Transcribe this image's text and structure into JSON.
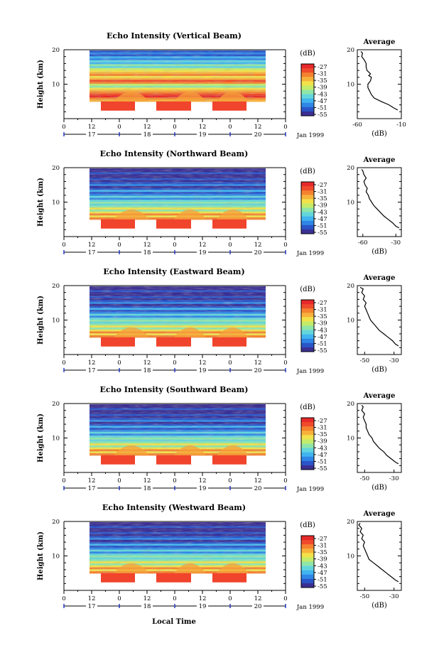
{
  "chart_data": {
    "type": "heatmap",
    "date_axis_label": "Jan 1999",
    "xlabel": "Local Time",
    "x_ticks_top": [
      "0",
      "12",
      "0",
      "12",
      "0",
      "12",
      "0",
      "12",
      "0"
    ],
    "x_ticks_days": [
      "17",
      "18",
      "19",
      "20"
    ],
    "colorbar": {
      "unit": "(dB)",
      "ticks": [
        "-27",
        "-31",
        "-35",
        "-39",
        "-43",
        "-47",
        "-51",
        "-55"
      ],
      "colors": [
        "#3b2f93",
        "#2a55c8",
        "#2f86e6",
        "#41b4f0",
        "#63d6dc",
        "#8fe6a8",
        "#c4ec6a",
        "#f2e24a",
        "#f7b23b",
        "#f5822f",
        "#f04a2c",
        "#e6292a"
      ]
    },
    "panels": [
      {
        "title": "Echo Intensity (Vertical Beam)",
        "ylabel": "Height (km)",
        "y_ticks": [
          "20",
          "10"
        ],
        "avg_title": "Average",
        "avg_xlabel": "(dB)",
        "avg_x_ticks": [
          "-60",
          "-10"
        ],
        "avg_xlim": [
          -60,
          -10
        ],
        "avg_y_ticks": [
          "20",
          "10"
        ],
        "profile": [
          [
            2.5,
            -14
          ],
          [
            3,
            -18
          ],
          [
            4,
            -24
          ],
          [
            5,
            -33
          ],
          [
            6,
            -41
          ],
          [
            7,
            -44
          ],
          [
            8,
            -46
          ],
          [
            9,
            -48
          ],
          [
            10,
            -48
          ],
          [
            11,
            -45
          ],
          [
            12,
            -44
          ],
          [
            12.5,
            -47
          ],
          [
            13,
            -45
          ],
          [
            14,
            -49
          ],
          [
            15,
            -50
          ],
          [
            16,
            -50
          ],
          [
            17,
            -52
          ],
          [
            18,
            -55
          ],
          [
            19,
            -54
          ],
          [
            19.5,
            -56
          ]
        ]
      },
      {
        "title": "Echo Intensity (Northward Beam)",
        "ylabel": "Height (km)",
        "y_ticks": [
          "20",
          "10"
        ],
        "avg_title": "Average",
        "avg_xlabel": "(dB)",
        "avg_x_ticks": [
          "-60",
          "-30"
        ],
        "avg_xlim": [
          -65,
          -25
        ],
        "avg_y_ticks": [
          "20",
          "10"
        ],
        "profile": [
          [
            2.5,
            -27
          ],
          [
            3,
            -30
          ],
          [
            4,
            -33
          ],
          [
            5,
            -37
          ],
          [
            6,
            -41
          ],
          [
            7,
            -44
          ],
          [
            8,
            -47
          ],
          [
            9,
            -50
          ],
          [
            10,
            -52
          ],
          [
            11,
            -54
          ],
          [
            12,
            -55
          ],
          [
            13,
            -57
          ],
          [
            14,
            -56
          ],
          [
            15,
            -58
          ],
          [
            16,
            -59
          ],
          [
            17,
            -57
          ],
          [
            18,
            -59
          ],
          [
            19,
            -60
          ],
          [
            19.5,
            -61
          ]
        ]
      },
      {
        "title": "Echo Intensity (Eastward Beam)",
        "ylabel": "Height (km)",
        "y_ticks": [
          "20",
          "10"
        ],
        "avg_title": "Average",
        "avg_xlabel": "(dB)",
        "avg_x_ticks": [
          "-50",
          "-30"
        ],
        "avg_xlim": [
          -55,
          -25
        ],
        "avg_y_ticks": [
          "20",
          "10"
        ],
        "profile": [
          [
            2.5,
            -27
          ],
          [
            3,
            -29
          ],
          [
            4,
            -31
          ],
          [
            5,
            -34
          ],
          [
            6,
            -37
          ],
          [
            7,
            -40
          ],
          [
            8,
            -42
          ],
          [
            9,
            -44
          ],
          [
            10,
            -46
          ],
          [
            11,
            -47
          ],
          [
            12,
            -48
          ],
          [
            13,
            -49
          ],
          [
            14,
            -50
          ],
          [
            15,
            -49
          ],
          [
            16,
            -51
          ],
          [
            17,
            -50
          ],
          [
            18,
            -52
          ],
          [
            19,
            -51
          ],
          [
            19.5,
            -53
          ]
        ]
      },
      {
        "title": "Echo Intensity (Southward Beam)",
        "ylabel": "Height (km)",
        "y_ticks": [
          "20",
          "10"
        ],
        "avg_title": "Average",
        "avg_xlabel": "(dB)",
        "avg_x_ticks": [
          "-50",
          "-30"
        ],
        "avg_xlim": [
          -55,
          -25
        ],
        "avg_y_ticks": [
          "20",
          "10"
        ],
        "profile": [
          [
            2.5,
            -27
          ],
          [
            3,
            -29
          ],
          [
            4,
            -32
          ],
          [
            5,
            -35
          ],
          [
            6,
            -37
          ],
          [
            7,
            -40
          ],
          [
            8,
            -42
          ],
          [
            9,
            -44
          ],
          [
            10,
            -45
          ],
          [
            11,
            -47
          ],
          [
            12,
            -48
          ],
          [
            13,
            -49
          ],
          [
            14,
            -49
          ],
          [
            15,
            -50
          ],
          [
            16,
            -51
          ],
          [
            17,
            -50
          ],
          [
            18,
            -52
          ],
          [
            19,
            -51
          ],
          [
            19.5,
            -52
          ]
        ]
      },
      {
        "title": "Echo Intensity (Westward Beam)",
        "ylabel": "Height (km)",
        "y_ticks": [
          "20",
          "10"
        ],
        "avg_title": "Average",
        "avg_xlabel": "(dB)",
        "avg_x_ticks": [
          "-50",
          "-30"
        ],
        "avg_xlim": [
          -55,
          -25
        ],
        "avg_y_ticks": [
          "20",
          "10"
        ],
        "profile": [
          [
            2.5,
            -27
          ],
          [
            3,
            -29
          ],
          [
            4,
            -32
          ],
          [
            5,
            -35
          ],
          [
            6,
            -38
          ],
          [
            7,
            -41
          ],
          [
            8,
            -44
          ],
          [
            9,
            -47
          ],
          [
            10,
            -48
          ],
          [
            11,
            -49
          ],
          [
            12,
            -50
          ],
          [
            13,
            -51
          ],
          [
            14,
            -50
          ],
          [
            15,
            -52
          ],
          [
            16,
            -51
          ],
          [
            17,
            -53
          ],
          [
            18,
            -52
          ],
          [
            19,
            -54
          ],
          [
            19.5,
            -53
          ]
        ]
      }
    ]
  }
}
